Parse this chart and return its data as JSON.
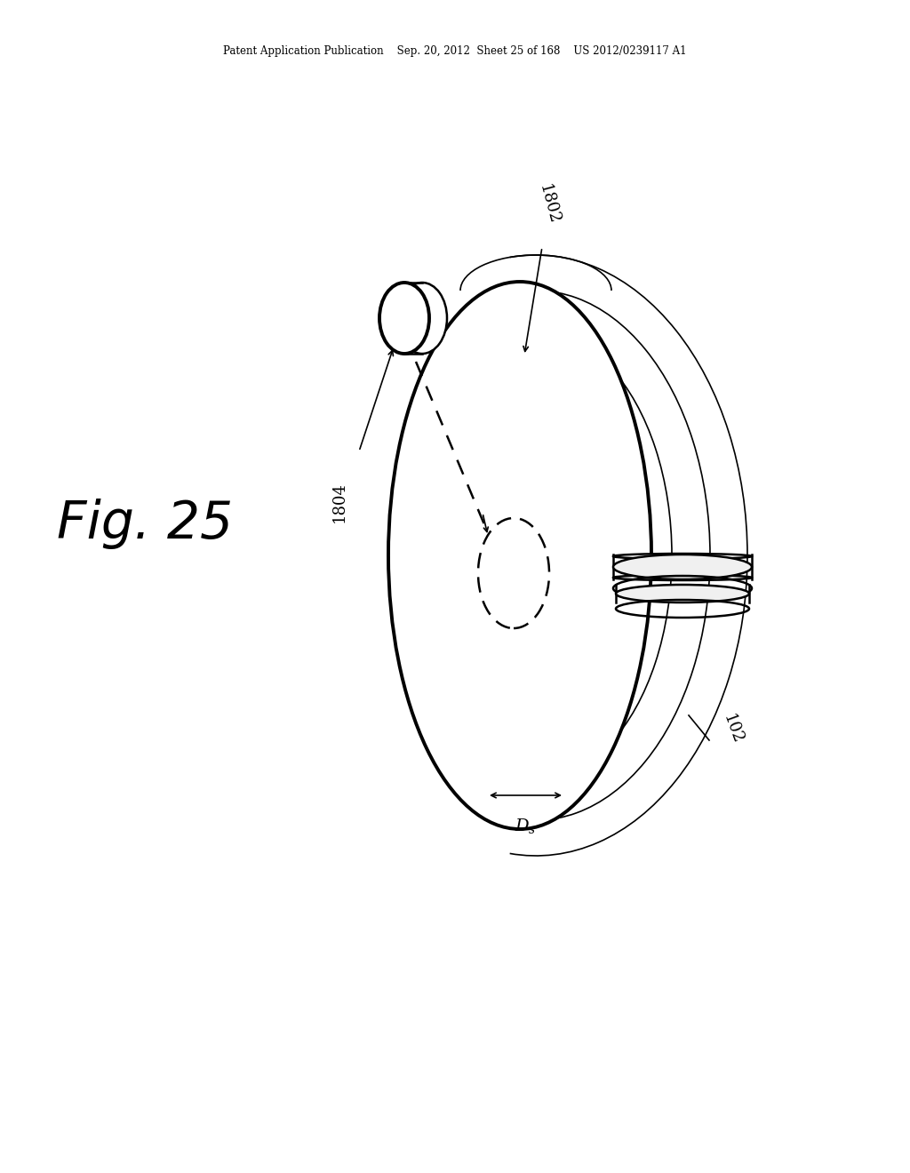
{
  "background_color": "#ffffff",
  "header_text": "Patent Application Publication    Sep. 20, 2012  Sheet 25 of 168    US 2012/0239117 A1",
  "fig_label": "Fig. 25",
  "label_1802": "1802",
  "label_1804": "1804",
  "label_102": "102",
  "label_Ds": "D",
  "line_color": "#000000",
  "lw_thick": 2.8,
  "lw_med": 1.8,
  "lw_thin": 1.2
}
